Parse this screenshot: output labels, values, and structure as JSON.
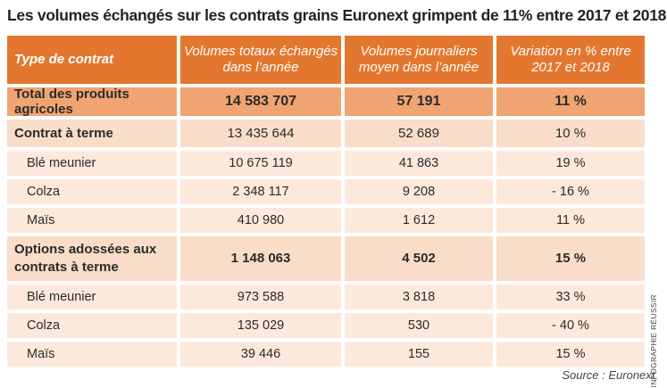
{
  "title": "Les volumes échangés sur les contrats grains Euronext grimpent de 11% entre 2017 et 2018",
  "headers": {
    "type": "Type de contrat",
    "total": "Volumes totaux échangés dans l’année",
    "daily": "Volumes journaliers moyen dans l’année",
    "variation": "Variation en % entre 2017 et 2018"
  },
  "rows": [
    {
      "label": "Total des produits agricoles",
      "total": "14 583 707",
      "daily": "57 191",
      "variation": "11 %"
    },
    {
      "label": "Contrat à terme",
      "total": "13 435 644",
      "daily": "52 689",
      "variation": "10 %"
    },
    {
      "label": "Blé meunier",
      "total": "10 675 119",
      "daily": "41 863",
      "variation": "19 %"
    },
    {
      "label": "Colza",
      "total": "2 348 117",
      "daily": "9 208",
      "variation": "- 16 %"
    },
    {
      "label": "Maïs",
      "total": "410 980",
      "daily": "1 612",
      "variation": "11 %"
    },
    {
      "label": "Options adossées aux contrats à terme",
      "total": "1 148 063",
      "daily": "4 502",
      "variation": "15 %"
    },
    {
      "label": "Blé meunier",
      "total": "973 588",
      "daily": "3 818",
      "variation": "33 %"
    },
    {
      "label": "Colza",
      "total": "135 029",
      "daily": "530",
      "variation": "- 40 %"
    },
    {
      "label": "Maïs",
      "total": "39 446",
      "daily": "155",
      "variation": "15 %"
    }
  ],
  "credit": "INFOGRAPHIE RÉUSSIR",
  "source": "Source : Euronext."
}
